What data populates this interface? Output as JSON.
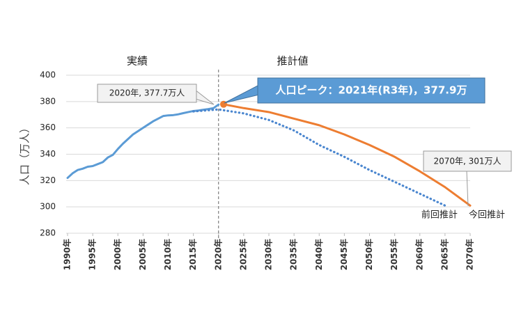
{
  "chart_data": {
    "type": "line",
    "y_label": "人口（万人）",
    "ylim": [
      280,
      400
    ],
    "yticks": [
      280,
      300,
      320,
      340,
      360,
      380,
      400
    ],
    "xlim": [
      1990,
      2070
    ],
    "xticks": [
      {
        "value": 1990,
        "label": "1990年"
      },
      {
        "value": 1995,
        "label": "1995年"
      },
      {
        "value": 2000,
        "label": "2000年"
      },
      {
        "value": 2005,
        "label": "2005年"
      },
      {
        "value": 2010,
        "label": "2010年"
      },
      {
        "value": 2015,
        "label": "2015年"
      },
      {
        "value": 2020,
        "label": "2020年"
      },
      {
        "value": 2025,
        "label": "2025年"
      },
      {
        "value": 2030,
        "label": "2030年"
      },
      {
        "value": 2035,
        "label": "2035年"
      },
      {
        "value": 2040,
        "label": "2040年"
      },
      {
        "value": 2045,
        "label": "2045年"
      },
      {
        "value": 2050,
        "label": "2050年"
      },
      {
        "value": 2055,
        "label": "2055年"
      },
      {
        "value": 2060,
        "label": "2060年"
      },
      {
        "value": 2065,
        "label": "2065年"
      },
      {
        "value": 2070,
        "label": "2070年"
      }
    ],
    "grid": true,
    "divider_x": 2020,
    "region_label": "推計値",
    "series": [
      {
        "name": "実績",
        "color": "#5b9bd5",
        "style": "solid",
        "x": [
          1990,
          1991,
          1992,
          1993,
          1994,
          1995,
          1996,
          1997,
          1998,
          1999,
          2000,
          2001,
          2002,
          2003,
          2004,
          2005,
          2006,
          2007,
          2008,
          2009,
          2010,
          2011,
          2012,
          2013,
          2014,
          2015,
          2016,
          2017,
          2018,
          2019,
          2020
        ],
        "values": [
          322,
          325.5,
          328,
          329,
          330.5,
          331,
          332.5,
          334,
          337.5,
          339.5,
          344,
          348,
          351.5,
          355,
          357.5,
          360,
          362.5,
          365,
          367,
          369,
          369.5,
          369.7,
          370.3,
          371.2,
          372,
          372.8,
          373.2,
          373.8,
          374.3,
          375,
          377.7
        ]
      },
      {
        "name": "前回推計",
        "color": "#4a86cf",
        "style": "dotted",
        "x": [
          2015,
          2020,
          2025,
          2030,
          2035,
          2040,
          2045,
          2050,
          2055,
          2060,
          2065
        ],
        "values": [
          372.5,
          374,
          371,
          366,
          358,
          347,
          338,
          328,
          319,
          310,
          301
        ]
      },
      {
        "name": "今回推計",
        "color": "#ed7d31",
        "style": "solid",
        "x": [
          2021,
          2025,
          2030,
          2035,
          2040,
          2045,
          2050,
          2055,
          2060,
          2065,
          2070
        ],
        "values": [
          377.9,
          375,
          372,
          367,
          362,
          355,
          347,
          338,
          327,
          315,
          301
        ]
      }
    ],
    "annotations": [
      "2020年, 377.7万人",
      "人口ピーク：2021年(R3年)，377.9万",
      "2070年, 301万人"
    ]
  }
}
